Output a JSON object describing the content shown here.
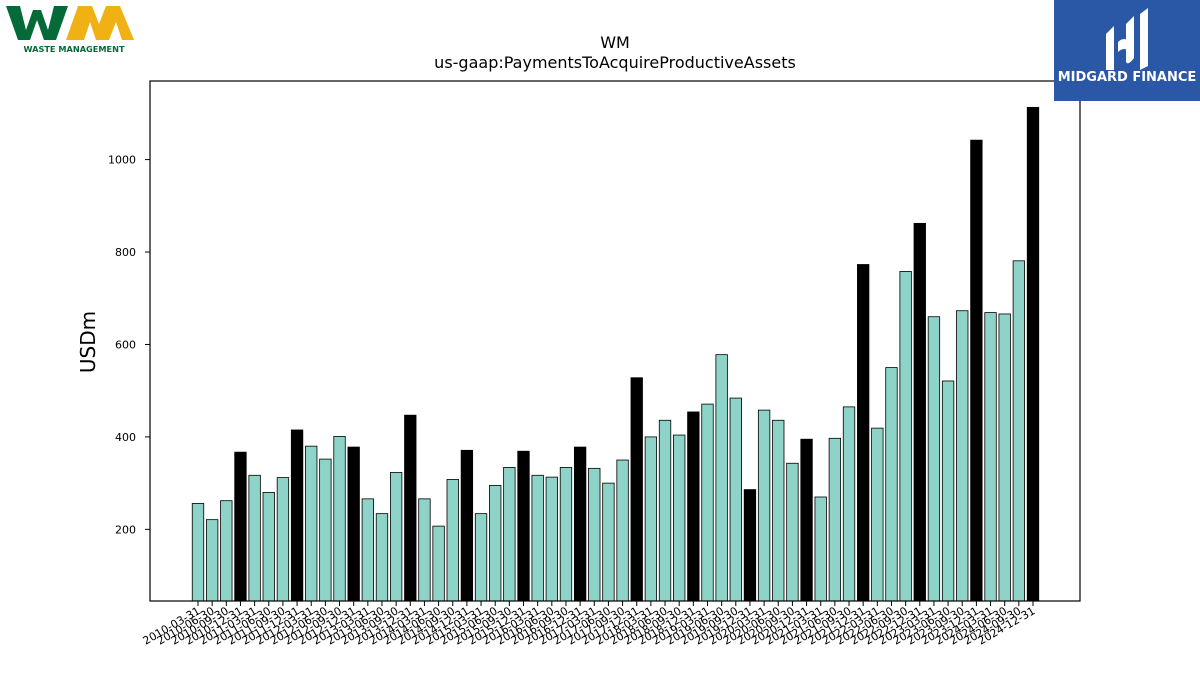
{
  "logos": {
    "left_text": "WASTE MANAGEMENT",
    "right_text": "MIDGARD FINANCE"
  },
  "colors": {
    "bar_regular": "#8dd3c7",
    "bar_highlight": "#000000",
    "edge": "#000000",
    "wm_green": "#046a38",
    "wm_yellow": "#f0b114",
    "midgard_blue": "#2a57a6"
  },
  "chart_data": {
    "type": "bar",
    "title": "WM",
    "subtitle": "us-gaap:PaymentsToAcquireProductiveAssets",
    "ylabel": "USDm",
    "xlabel": "",
    "ylim": [
      45,
      1170
    ],
    "yticks": [
      200,
      400,
      600,
      800,
      1000
    ],
    "grid": false,
    "legend": "none",
    "categories": [
      "2010-03-31",
      "2010-06-30",
      "2010-09-30",
      "2010-12-31",
      "2011-03-31",
      "2011-06-30",
      "2011-09-30",
      "2011-12-31",
      "2012-03-31",
      "2012-06-30",
      "2012-09-30",
      "2012-12-31",
      "2013-03-31",
      "2013-06-30",
      "2013-09-30",
      "2013-12-31",
      "2014-03-31",
      "2014-06-30",
      "2014-09-30",
      "2014-12-31",
      "2015-03-31",
      "2015-06-30",
      "2015-09-30",
      "2015-12-31",
      "2016-03-31",
      "2016-06-30",
      "2016-09-30",
      "2016-12-31",
      "2017-03-31",
      "2017-06-30",
      "2017-09-30",
      "2017-12-31",
      "2018-03-31",
      "2018-06-30",
      "2018-09-30",
      "2018-12-31",
      "2019-03-31",
      "2019-06-30",
      "2019-09-30",
      "2019-12-31",
      "2020-03-31",
      "2020-06-30",
      "2020-09-30",
      "2020-12-31",
      "2021-03-31",
      "2021-06-30",
      "2021-09-30",
      "2021-12-31",
      "2022-03-31",
      "2022-06-30",
      "2022-09-30",
      "2022-12-31",
      "2023-03-31",
      "2023-06-30",
      "2023-09-30",
      "2023-12-31",
      "2024-03-31",
      "2024-06-30",
      "2024-09-30",
      "2024-12-31"
    ],
    "values": [
      256,
      221,
      262,
      367,
      317,
      280,
      312,
      415,
      380,
      352,
      401,
      378,
      266,
      234,
      323,
      447,
      266,
      207,
      308,
      371,
      234,
      295,
      334,
      369,
      317,
      313,
      334,
      378,
      332,
      300,
      350,
      528,
      400,
      436,
      404,
      454,
      471,
      578,
      484,
      286,
      458,
      436,
      343,
      395,
      270,
      397,
      465,
      773,
      419,
      550,
      758,
      862,
      660,
      521,
      673,
      1042,
      669,
      666,
      781,
      1113
    ],
    "highlight_every": 4,
    "highlight_note": "every 4th bar (Q4) drawn in black"
  }
}
